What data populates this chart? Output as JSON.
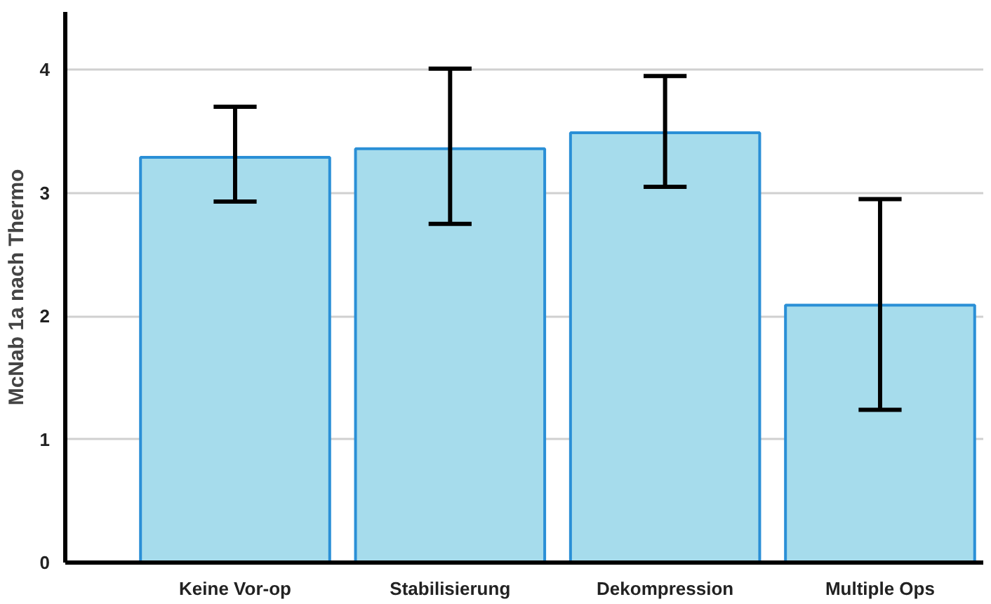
{
  "chart_data": {
    "type": "bar",
    "ylabel": "McNab 1a nach Thermo",
    "categories": [
      "Keine Vor-op",
      "Stabilisierung",
      "Dekompression",
      "Multiple Ops"
    ],
    "values": [
      3.29,
      3.36,
      3.49,
      2.09
    ],
    "errors": [
      [
        2.93,
        3.7
      ],
      [
        2.75,
        4.01
      ],
      [
        3.05,
        3.95
      ],
      [
        1.24,
        2.95
      ]
    ],
    "color": "#a6dcec",
    "ylim": [
      0,
      4.47
    ],
    "yticks": [
      0,
      1,
      2,
      3,
      4
    ],
    "grid": "y"
  }
}
